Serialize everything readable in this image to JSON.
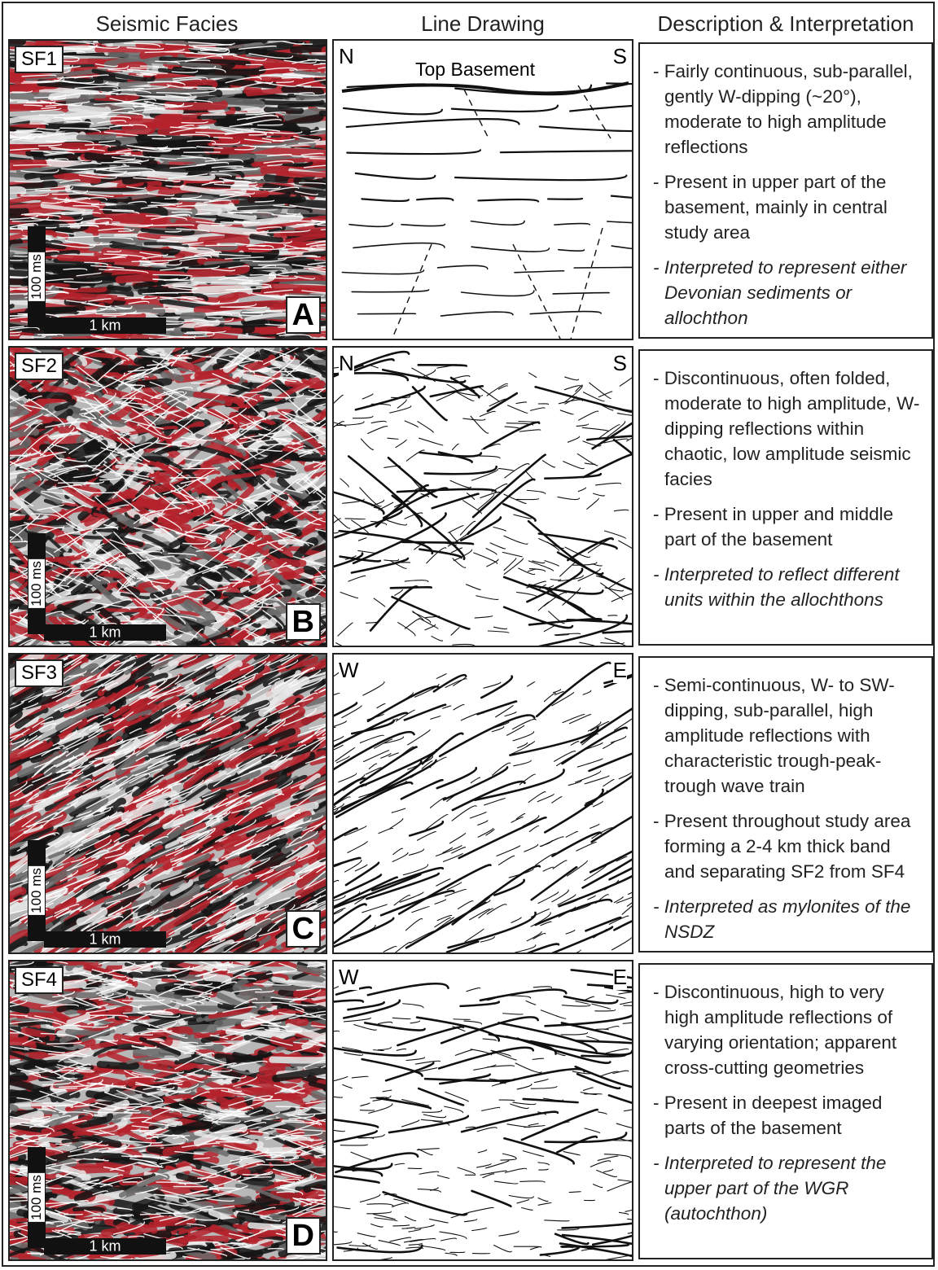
{
  "header": {
    "columns": [
      "Seismic Facies",
      "Line Drawing",
      "Description & Interpretation"
    ]
  },
  "rows": [
    {
      "facies_label": "SF1",
      "time_scale": "100 ms",
      "distance_scale": "1 km",
      "panel_letter": "A",
      "directions": [
        "N",
        "S"
      ],
      "annotation": "Top Basement",
      "bullets": [
        "- Fairly continuous, sub-parallel, gently W-dipping (~20°), moderate to high amplitude reflections",
        "- Present in upper part of the basement, mainly in central study area",
        "- Interpreted to represent either Devonian sediments or allochthon"
      ]
    },
    {
      "facies_label": "SF2",
      "time_scale": "100 ms",
      "distance_scale": "1 km",
      "panel_letter": "B",
      "directions": [
        "N",
        "S"
      ],
      "bullets": [
        "- Discontinuous, often folded, moderate to high amplitude, W-dipping reflections within chaotic, low amplitude seismic facies",
        "- Present in upper and middle part of the basement",
        "- Interpreted to reflect different units within the allochthons"
      ]
    },
    {
      "facies_label": "SF3",
      "time_scale": "100 ms",
      "distance_scale": "1 km",
      "panel_letter": "C",
      "directions": [
        "W",
        "E"
      ],
      "bullets": [
        "- Semi-continuous, W- to SW-dipping, sub-parallel, high amplitude reflections with characteristic trough-peak-trough wave train",
        "- Present throughout study area forming a 2-4 km thick band and separating SF2 from SF4",
        "- Interpreted as mylonites of the NSDZ"
      ]
    },
    {
      "facies_label": "SF4",
      "time_scale": "100 ms",
      "distance_scale": "1 km",
      "panel_letter": "D",
      "directions": [
        "W",
        "E"
      ],
      "bullets": [
        "- Discontinuous, high to very high amplitude reflections of varying orientation; apparent cross-cutting geometries",
        "- Present in deepest imaged parts of the basement",
        "- Interpreted to represent the upper part of the WGR (autochthon)"
      ]
    }
  ]
}
